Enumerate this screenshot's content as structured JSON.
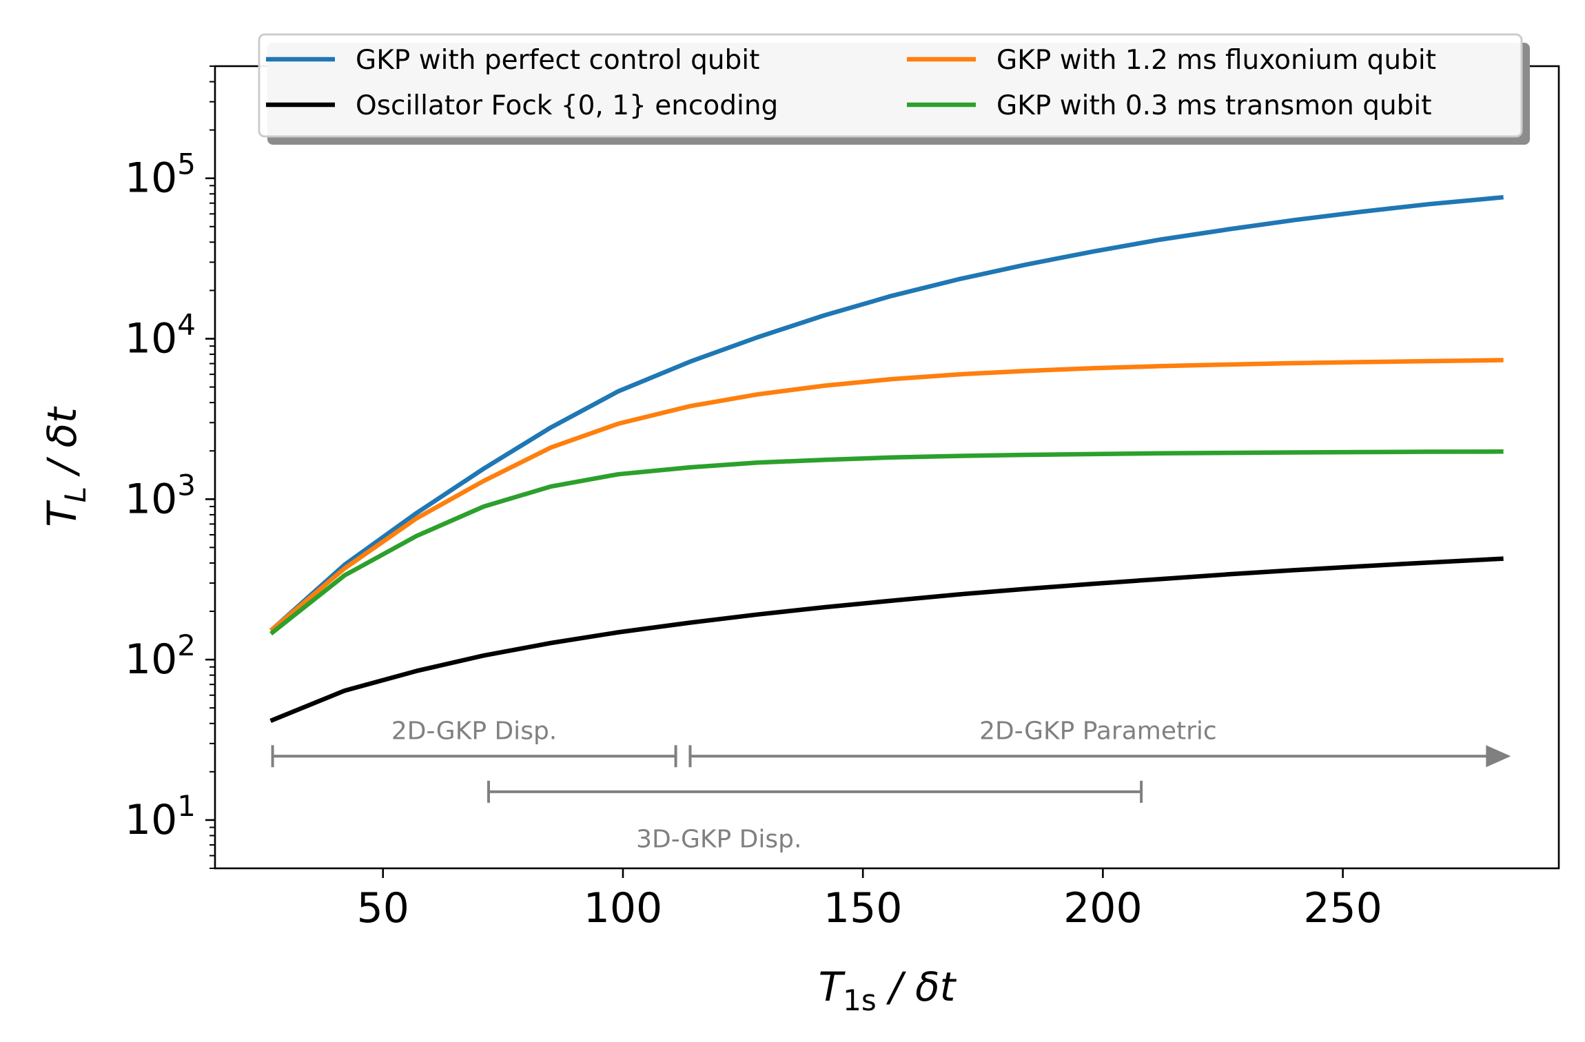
{
  "chart_data": {
    "type": "line",
    "xlabel": {
      "main": "T",
      "sub": "1s",
      "rest": " / δt"
    },
    "ylabel": {
      "main": "T",
      "sub": "L",
      "rest": " / δt"
    },
    "xlim": [
      15,
      295
    ],
    "ylim": [
      5,
      500000
    ],
    "yscale": "log",
    "grid": false,
    "legend_placement": "top-center",
    "x_ticks": [
      50,
      100,
      150,
      200,
      250
    ],
    "x_tick_labels": [
      "50",
      "100",
      "150",
      "200",
      "250"
    ],
    "y_ticks": [
      10,
      100,
      1000,
      10000,
      100000
    ],
    "y_tick_labels": [
      {
        "base": "10",
        "exp": "1"
      },
      {
        "base": "10",
        "exp": "2"
      },
      {
        "base": "10",
        "exp": "3"
      },
      {
        "base": "10",
        "exp": "4"
      },
      {
        "base": "10",
        "exp": "5"
      }
    ],
    "x": [
      27,
      42,
      57,
      71,
      85,
      99,
      114,
      128,
      142,
      156,
      170,
      184,
      198,
      212,
      226,
      240,
      254,
      268,
      283
    ],
    "series": [
      {
        "name": "GKP with perfect control qubit",
        "color": "#1f77b4",
        "values": [
          155,
          390,
          820,
          1550,
          2800,
          4700,
          7200,
          10200,
          14000,
          18500,
          23500,
          29000,
          35000,
          41500,
          48000,
          55000,
          62000,
          69000,
          76000
        ]
      },
      {
        "name": "Oscillator Fock {0, 1} encoding",
        "color": "#000000",
        "values": [
          42,
          64,
          85,
          106,
          127,
          148,
          170,
          191,
          212,
          233,
          255,
          276,
          297,
          318,
          340,
          361,
          382,
          403,
          425
        ]
      },
      {
        "name": "GKP with 1.2 ms fluxonium qubit",
        "color": "#ff7f0e",
        "values": [
          155,
          370,
          760,
          1300,
          2100,
          2950,
          3800,
          4500,
          5100,
          5600,
          6000,
          6300,
          6550,
          6750,
          6900,
          7050,
          7150,
          7250,
          7350
        ]
      },
      {
        "name": "GKP with 0.3 ms transmon qubit",
        "color": "#2ca02c",
        "values": [
          148,
          335,
          590,
          900,
          1200,
          1430,
          1580,
          1690,
          1760,
          1820,
          1860,
          1890,
          1910,
          1930,
          1945,
          1955,
          1965,
          1975,
          1980
        ]
      }
    ],
    "annotations": [
      {
        "label": "2D-GKP Disp.",
        "x_start": 27,
        "x_end": 111,
        "y": 25,
        "label_y": 36,
        "label_x": 69,
        "end_style": "bar"
      },
      {
        "label": "2D-GKP Parametric",
        "x_start": 114,
        "x_end": 285,
        "y": 25,
        "label_y": 36,
        "label_x": 199,
        "end_style": "arrow"
      },
      {
        "label": "3D-GKP Disp.",
        "x_start": 72,
        "x_end": 208,
        "y": 15,
        "label_y": 7.6,
        "label_x": 120,
        "end_style": "bar"
      }
    ],
    "annotation_color": "#808080"
  }
}
